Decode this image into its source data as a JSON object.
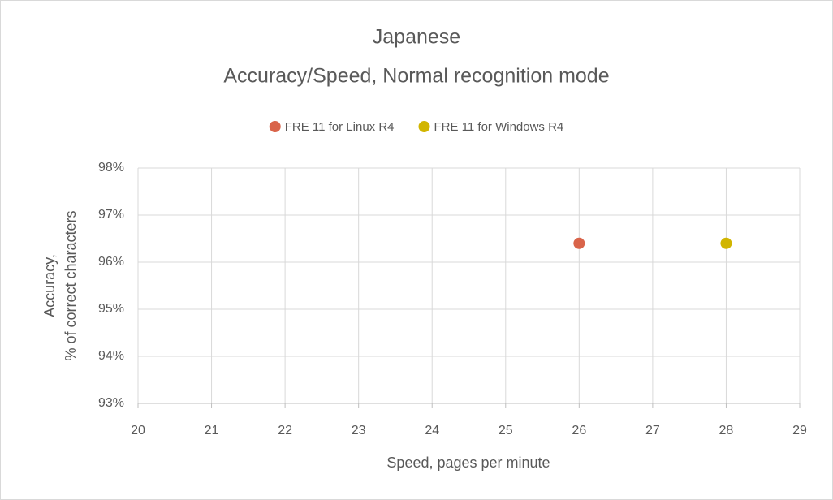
{
  "chart_data": {
    "type": "scatter",
    "title": "Japanese",
    "subtitle": "Accuracy/Speed, Normal recognition mode",
    "xlabel": "Speed, pages per minute",
    "ylabel": [
      "Accuracy,",
      "% of correct characters"
    ],
    "series": [
      {
        "name": "FRE 11 for Linux R4",
        "color": "#d9644a",
        "x": [
          26
        ],
        "values": [
          96.4
        ]
      },
      {
        "name": "FRE 11 for Windows R4",
        "color": "#d1b500",
        "x": [
          28
        ],
        "values": [
          96.4
        ]
      }
    ],
    "xlim": [
      20,
      29
    ],
    "xticks": [
      20,
      21,
      22,
      23,
      24,
      25,
      26,
      27,
      28,
      29
    ],
    "ylim": [
      93,
      98
    ],
    "yticks": [
      {
        "value": 93,
        "label": "93%"
      },
      {
        "value": 94,
        "label": "94%"
      },
      {
        "value": 95,
        "label": "95%"
      },
      {
        "value": 96,
        "label": "96%"
      },
      {
        "value": 97,
        "label": "97%"
      },
      {
        "value": 98,
        "label": "98%"
      }
    ],
    "grid": true,
    "legend": "top"
  }
}
